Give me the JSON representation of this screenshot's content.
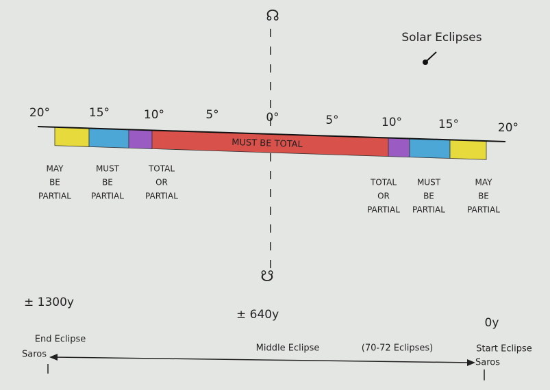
{
  "title": "Solar Eclipses",
  "nodes": {
    "top": "☊",
    "bottom": "☋"
  },
  "scale": [
    "20°",
    "15°",
    "10°",
    "5°",
    "0°",
    "5°",
    "10°",
    "15°",
    "20°"
  ],
  "band_label": "MUST BE TOTAL",
  "zones_left": [
    [
      "MAY",
      "BE",
      "PARTIAL"
    ],
    [
      "MUST",
      "BE",
      "PARTIAL"
    ],
    [
      "TOTAL",
      "OR",
      "PARTIAL"
    ]
  ],
  "zones_right": [
    [
      "TOTAL",
      "OR",
      "PARTIAL"
    ],
    [
      "MUST",
      "BE",
      "PARTIAL"
    ],
    [
      "MAY",
      "BE",
      "PARTIAL"
    ]
  ],
  "timeline": {
    "end_years": "± 1300y",
    "middle_years": "± 640y",
    "start_years": "0y",
    "end_label": "End Eclipse",
    "end_saros": "Saros",
    "middle_label": "Middle Eclipse",
    "count": "(70-72 Eclipses)",
    "start_label": "Start Eclipse",
    "start_saros": "Saros"
  }
}
